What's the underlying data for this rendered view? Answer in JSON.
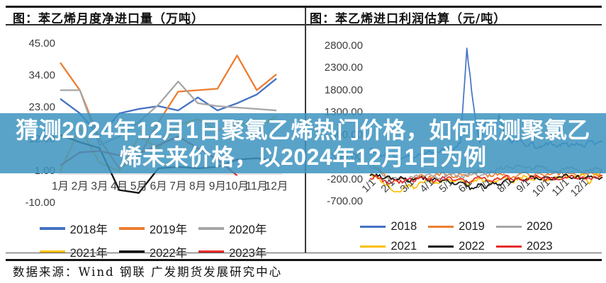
{
  "overlay": {
    "line1": "猜测2024年12月1日聚氯乙烯热门价格，如何预测聚氯乙",
    "line2": "烯未来价格，以2024年12月1日为例",
    "full_title": "猜测2024年12月1日聚氯乙烯热门价格，如何预测聚氯乙烯未来价格，以2024年12月1日为例",
    "bg_color": "rgba(62,148,192,0.86)",
    "text_color": "#ffffff"
  },
  "source_note": "数据来源：Wind  钢联  广发期货发展研究中心",
  "chart_data": [
    {
      "type": "line",
      "title": "图：苯乙烯月度净进口量（万吨）",
      "xlabel": "",
      "ylabel": "万吨",
      "x_categories": [
        "1月",
        "2月",
        "3月",
        "4月",
        "5月",
        "6月",
        "7月",
        "8月",
        "9月",
        "10月",
        "11月",
        "12月"
      ],
      "y_tick_labels": [
        "45.00",
        "34.00",
        "23.00",
        "12.00",
        "1.00",
        "-10.00"
      ],
      "ylim": [
        -10,
        45
      ],
      "grid": false,
      "legend_position": "bottom",
      "series": [
        {
          "name": "2018年",
          "color": "#4472C4",
          "values": [
            26,
            21,
            13,
            21,
            22.5,
            23.5,
            22,
            26.5,
            22,
            24.5,
            27.5,
            33
          ]
        },
        {
          "name": "2019年",
          "color": "#ED7D31",
          "values": [
            38.5,
            29,
            12,
            2,
            6,
            18,
            28.5,
            29,
            29.5,
            41,
            29,
            34.5
          ]
        },
        {
          "name": "2020年",
          "color": "#A6A6A6",
          "values": [
            29,
            29,
            10,
            13,
            18,
            24,
            32,
            24.5,
            23.5,
            23,
            22.5,
            22
          ]
        },
        {
          "name": "2021年",
          "color": "#FFC000",
          "values": [
            1,
            16,
            4,
            1,
            13,
            9,
            17,
            19,
            15,
            18,
            16,
            20
          ]
        },
        {
          "name": "2022年",
          "color": "#111111",
          "values": [
            13.5,
            11,
            9,
            -5.5,
            -6.5,
            2,
            2.5,
            2,
            2.5,
            5,
            5.5,
            4.5
          ]
        },
        {
          "name": "2023年",
          "color": "#E52C2C",
          "values": [
            3,
            7.5,
            8,
            6.5,
            7,
            10,
            13,
            9,
            5,
            -0.5
          ]
        }
      ]
    },
    {
      "type": "line",
      "title": "图：苯乙烯进口利润估算（元/吨）",
      "xlabel": "",
      "ylabel": "元/吨",
      "x_categories": [
        "1/1",
        "2/1",
        "3/1",
        "4/1",
        "5/1",
        "6/1",
        "7/1",
        "8/1",
        "9/1",
        "10/1",
        "11/1",
        "12/1"
      ],
      "y_tick_labels": [
        "2800.00",
        "2300.00",
        "1800.00",
        "1300.00",
        "800.00",
        "300.00",
        "-200.00",
        "-700.00"
      ],
      "ylim": [
        -700,
        2800
      ],
      "grid": false,
      "legend_position": "bottom",
      "note": "daily data, values approximate (sampled every ~10 days)",
      "series": [
        {
          "name": "2018",
          "color": "#4472C4",
          "values": [
            480,
            400,
            330,
            370,
            300,
            270,
            340,
            300,
            360,
            420,
            380,
            450,
            520,
            480,
            620,
            2750,
            1500,
            620,
            1150,
            880,
            1250,
            800,
            620,
            700,
            560,
            620,
            500,
            560,
            640,
            520,
            600,
            560,
            620,
            540,
            660,
            600,
            640
          ]
        },
        {
          "name": "2019",
          "color": "#ED7D31",
          "values": [
            150,
            60,
            -60,
            -160,
            -230,
            -180,
            -260,
            -150,
            -90,
            -180,
            -120,
            -60,
            -110,
            -160,
            -80,
            -130,
            -60,
            -10,
            -90,
            -130,
            -70,
            -110,
            -160,
            -90,
            -50,
            -110,
            -70,
            -130,
            -90,
            -50,
            -100,
            -60,
            -110,
            -70,
            -40,
            -90,
            -60
          ]
        },
        {
          "name": "2020",
          "color": "#A6A6A6",
          "values": [
            100,
            40,
            -110,
            -210,
            -160,
            -260,
            -190,
            -110,
            -160,
            -90,
            -130,
            -190,
            -110,
            -60,
            -160,
            -110,
            -70,
            -130,
            -90,
            -40,
            40,
            90,
            50,
            110,
            70,
            30,
            90,
            50,
            10,
            -30,
            30,
            70,
            20,
            -20,
            20,
            50,
            30
          ]
        },
        {
          "name": "2021",
          "color": "#FFC000",
          "values": [
            -80,
            -160,
            -260,
            -360,
            -480,
            -420,
            -310,
            -390,
            -260,
            -210,
            -290,
            -230,
            -190,
            -260,
            -210,
            -310,
            -260,
            -190,
            -230,
            -290,
            -210,
            -160,
            -260,
            -190,
            -130,
            -210,
            -160,
            -230,
            -190,
            -130,
            -170,
            -110,
            -160,
            -90,
            -300,
            -60,
            -180
          ]
        },
        {
          "name": "2022",
          "color": "#111111",
          "values": [
            -120,
            -80,
            -190,
            -130,
            -210,
            -160,
            -260,
            -190,
            -130,
            -230,
            -170,
            -260,
            -210,
            -310,
            -260,
            -360,
            -410,
            -310,
            -390,
            -260,
            -310,
            -210,
            -260,
            -160,
            -210,
            -130,
            -190,
            -150,
            -210,
            -160,
            -110,
            -160,
            -130,
            -190,
            -140,
            -170,
            -150
          ]
        },
        {
          "name": "2023",
          "color": "#E52C2C",
          "values": [
            -180,
            -120,
            -250,
            -300,
            -210,
            -280,
            -190,
            -240,
            -160,
            -210,
            -250,
            -190,
            -160,
            -220,
            -180,
            -250,
            -210,
            -160,
            -200,
            -250,
            -190,
            -130,
            -200,
            -160,
            -220,
            -180,
            -130,
            -190,
            -160,
            -200,
            -170,
            -130,
            -180,
            -140,
            -180,
            -150,
            -110
          ]
        }
      ]
    }
  ]
}
